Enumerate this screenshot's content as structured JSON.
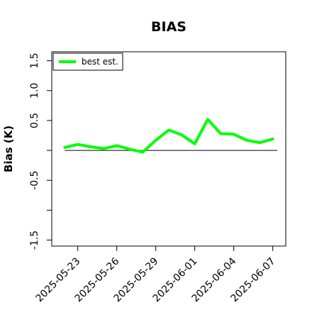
{
  "chart_data": {
    "type": "line",
    "title": "BIAS",
    "xlabel": "",
    "ylabel": "Bias (K)",
    "ylim": [
      -1.6,
      1.65
    ],
    "xlim": [
      "2025-05-21",
      "2025-06-08"
    ],
    "yticks": [
      1.5,
      1.0,
      0.5,
      -0.5,
      -1.5
    ],
    "ytick_labels": [
      "1.5",
      "1.0",
      "0.5",
      "-0.5",
      "-1.5"
    ],
    "yticks_unlabeled": [
      0,
      -1.0
    ],
    "xticks": [
      "2025-05-23",
      "2025-05-26",
      "2025-05-29",
      "2025-06-01",
      "2025-06-04",
      "2025-06-07"
    ],
    "grid": false,
    "reference_line": 0,
    "legend": {
      "position": "top-left"
    },
    "series": [
      {
        "name": "best est.",
        "color": "#00ff00",
        "x": [
          "2025-05-22",
          "2025-05-23",
          "2025-05-24",
          "2025-05-25",
          "2025-05-26",
          "2025-05-27",
          "2025-05-28",
          "2025-05-29",
          "2025-05-30",
          "2025-05-31",
          "2025-06-01",
          "2025-06-02",
          "2025-06-03",
          "2025-06-04",
          "2025-06-05",
          "2025-06-06",
          "2025-06-07"
        ],
        "y": [
          0.05,
          0.1,
          0.06,
          0.03,
          0.08,
          0.02,
          -0.03,
          0.17,
          0.34,
          0.26,
          0.11,
          0.52,
          0.28,
          0.27,
          0.17,
          0.13,
          0.19
        ]
      }
    ]
  }
}
